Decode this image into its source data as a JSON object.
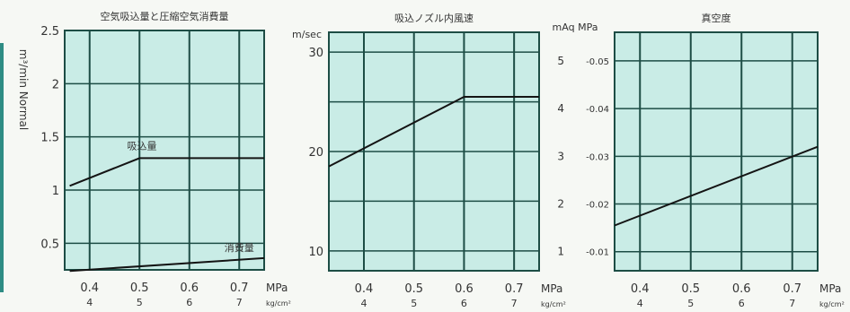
{
  "chart_data": [
    {
      "type": "line",
      "title": "空気吸込量と圧縮空気消費量",
      "ylabel": "m³/min Normal",
      "yticks": [
        "0.5",
        "1",
        "1.5",
        "2",
        "2.5"
      ],
      "ylim": [
        0.25,
        2.5
      ],
      "xlim": [
        0.35,
        0.75
      ],
      "xticks": [
        0.4,
        0.5,
        0.6,
        0.7
      ],
      "xtick_labels": [
        "0.4",
        "0.5",
        "0.6",
        "0.7"
      ],
      "xtick_labels_sub": [
        "4",
        "5",
        "6",
        "7"
      ],
      "xunit": "MPa",
      "xunit_sub": "kg/cm²",
      "series": [
        {
          "name": "吸込量",
          "x": [
            0.36,
            0.5,
            0.75
          ],
          "y": [
            1.04,
            1.3,
            1.3
          ]
        },
        {
          "name": "消費量",
          "x": [
            0.36,
            0.75
          ],
          "y": [
            0.24,
            0.36
          ]
        }
      ]
    },
    {
      "type": "line",
      "title": "吸込ノズル内風速",
      "ylabel": "m/sec",
      "yticks": [
        "10",
        "20",
        "30"
      ],
      "ylim": [
        8,
        32
      ],
      "xlim": [
        0.33,
        0.75
      ],
      "xticks": [
        0.4,
        0.5,
        0.6,
        0.7
      ],
      "xtick_labels": [
        "0.4",
        "0.5",
        "0.6",
        "0.7"
      ],
      "xtick_labels_sub": [
        "4",
        "5",
        "6",
        "7"
      ],
      "xunit": "MPa",
      "xunit_sub": "kg/cm²",
      "series": [
        {
          "x": [
            0.33,
            0.6,
            0.75
          ],
          "y": [
            18.5,
            25.5,
            25.5
          ]
        }
      ]
    },
    {
      "type": "line",
      "title": "真空度",
      "ylabel": "mAq  MPa",
      "yticks_left": [
        "1",
        "2",
        "3",
        "4",
        "5"
      ],
      "yticks_right": [
        "-0.01",
        "-0.02",
        "-0.03",
        "-0.04",
        "-0.05"
      ],
      "ylim": [
        0.6,
        5.6
      ],
      "xlim": [
        0.35,
        0.75
      ],
      "xticks": [
        0.4,
        0.5,
        0.6,
        0.7
      ],
      "xtick_labels": [
        "0.4",
        "0.5",
        "0.6",
        "0.7"
      ],
      "xtick_labels_sub": [
        "4",
        "5",
        "6",
        "7"
      ],
      "xunit": "MPa",
      "xunit_sub": "kg/cm²",
      "series": [
        {
          "x": [
            0.35,
            0.75
          ],
          "y": [
            1.55,
            3.2
          ]
        }
      ]
    }
  ],
  "colors": {
    "plot_bg": "#c9ece6",
    "grid": "#1d4d45",
    "line": "#141414"
  }
}
